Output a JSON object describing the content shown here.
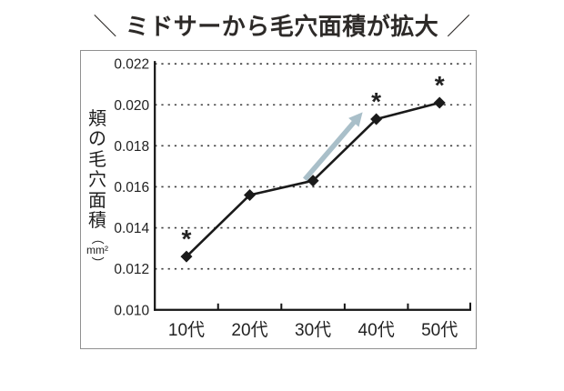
{
  "title": {
    "left_mark": "＼",
    "text": "ミドサーから毛穴面積が拡大",
    "right_mark": "／"
  },
  "chart_data": {
    "type": "line",
    "title": "＼ミドサーから毛穴面積が拡大／",
    "categories": [
      "10代",
      "20代",
      "30代",
      "40代",
      "50代"
    ],
    "series": [
      {
        "name": "頬の毛穴面積",
        "values": [
          0.0126,
          0.0156,
          0.0163,
          0.0193,
          0.0201
        ],
        "marker": "diamond"
      }
    ],
    "significance": [
      true,
      false,
      false,
      true,
      true
    ],
    "significance_symbol": "*",
    "ylabel": "頬の毛穴面積",
    "y_unit": "mm²",
    "unit_open_paren": "（",
    "unit_close_paren": "）",
    "xlabel": "",
    "ylim": [
      0.01,
      0.022
    ],
    "ytick_labels": [
      "0.010",
      "0.012",
      "0.014",
      "0.016",
      "0.018",
      "0.020",
      "0.022"
    ],
    "grid": "horizontal-dotted",
    "legend": "none",
    "annotation_arrow": {
      "description": "upward trend arrow between 30代 and 40代",
      "color": "#a9bfc9",
      "from_category_index": 2,
      "from_value": 0.01636,
      "from_dx": -9,
      "to_category_index": 3,
      "to_value": 0.01964,
      "to_dx": -15
    },
    "colors": {
      "line": "#1a1a1a",
      "grid": "#3d3d3d",
      "text": "#222222",
      "axis": "#141414",
      "frame_border": "#909090"
    }
  }
}
